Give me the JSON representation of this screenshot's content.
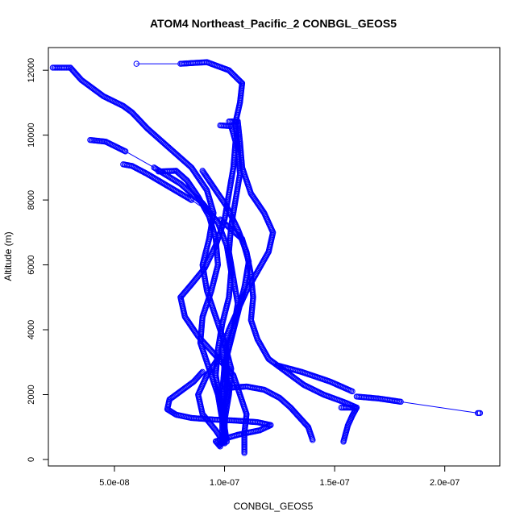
{
  "chart_data": {
    "type": "scatter",
    "title": "ATOM4 Northeast_Pacific_2 CONBGL_GEOS5",
    "xlabel": "CONBGL_GEOS5",
    "ylabel": "Altitude (m)",
    "xlim": [
      2e-08,
      2.25e-07
    ],
    "ylim": [
      -200,
      12700
    ],
    "xticks": [
      {
        "value": 5e-08,
        "label": "5.0e-08"
      },
      {
        "value": 1e-07,
        "label": "1.0e-07"
      },
      {
        "value": 1.5e-07,
        "label": "1.5e-07"
      },
      {
        "value": 2e-07,
        "label": "2.0e-07"
      }
    ],
    "yticks": [
      {
        "value": 0,
        "label": "0"
      },
      {
        "value": 2000,
        "label": "2000"
      },
      {
        "value": 4000,
        "label": "4000"
      },
      {
        "value": 6000,
        "label": "6000"
      },
      {
        "value": 8000,
        "label": "8000"
      },
      {
        "value": 10000,
        "label": "10000"
      },
      {
        "value": 12000,
        "label": "12000"
      }
    ],
    "color": "#0000ff",
    "marker": "open-circle",
    "grid": false,
    "series": [
      {
        "points": [
          [
            2.2e-08,
            12080
          ],
          [
            3e-08,
            12080
          ],
          [
            3.5e-08,
            11700
          ],
          [
            4.5e-08,
            11200
          ],
          [
            5.4e-08,
            10900
          ],
          [
            5.8e-08,
            10700
          ],
          [
            6.5e-08,
            10200
          ],
          [
            7.5e-08,
            9600
          ],
          [
            8.5e-08,
            9000
          ],
          [
            9.2e-08,
            8300
          ],
          [
            9.5e-08,
            7600
          ],
          [
            9.3e-08,
            6800
          ],
          [
            9e-08,
            6000
          ],
          [
            9.2e-08,
            5200
          ],
          [
            9.6e-08,
            4400
          ],
          [
            1e-07,
            3600
          ],
          [
            1.03e-07,
            2800
          ],
          [
            1.02e-07,
            2000
          ],
          [
            1e-07,
            1200
          ],
          [
            1e-07,
            600
          ],
          [
            9.8e-08,
            450
          ]
        ]
      },
      {
        "points": [
          [
            6e-08,
            12200
          ],
          [
            8e-08,
            12200
          ],
          [
            9.2e-08,
            12250
          ],
          [
            1.02e-07,
            12000
          ],
          [
            1.08e-07,
            11600
          ],
          [
            1.07e-07,
            11000
          ],
          [
            1.05e-07,
            10400
          ],
          [
            1.06e-07,
            9600
          ],
          [
            1.07e-07,
            8800
          ],
          [
            1.05e-07,
            8000
          ],
          [
            1.03e-07,
            7200
          ],
          [
            1.02e-07,
            6400
          ],
          [
            1.04e-07,
            5600
          ],
          [
            1.06e-07,
            4800
          ],
          [
            1.04e-07,
            4000
          ],
          [
            1.01e-07,
            3200
          ],
          [
            1e-07,
            2400
          ],
          [
            9.9e-08,
            1600
          ],
          [
            1e-07,
            800
          ],
          [
            9.9e-08,
            500
          ]
        ]
      },
      {
        "points": [
          [
            3.9e-08,
            9850
          ],
          [
            4.6e-08,
            9800
          ],
          [
            5.5e-08,
            9500
          ],
          [
            6.8e-08,
            9000
          ],
          [
            8e-08,
            8500
          ],
          [
            9e-08,
            7900
          ],
          [
            9.7e-08,
            7300
          ],
          [
            1.01e-07,
            6600
          ],
          [
            1.03e-07,
            5800
          ],
          [
            1.02e-07,
            5000
          ],
          [
            9.9e-08,
            4200
          ],
          [
            9.7e-08,
            3400
          ],
          [
            9.6e-08,
            2600
          ],
          [
            9.8e-08,
            1800
          ],
          [
            1e-07,
            1000
          ],
          [
            1.01e-07,
            550
          ]
        ]
      },
      {
        "points": [
          [
            5.4e-08,
            9100
          ],
          [
            5.8e-08,
            9050
          ],
          [
            6.5e-08,
            8800
          ],
          [
            7.5e-08,
            8400
          ],
          [
            8.5e-08,
            8000
          ],
          [
            9.8e-08,
            7400
          ],
          [
            1.08e-07,
            6800
          ],
          [
            1.11e-07,
            6100
          ],
          [
            1.09e-07,
            5300
          ],
          [
            1.06e-07,
            4500
          ],
          [
            1.03e-07,
            3700
          ],
          [
            1e-07,
            2900
          ],
          [
            9.9e-08,
            2100
          ],
          [
            1e-07,
            1300
          ],
          [
            1e-07,
            600
          ]
        ]
      },
      {
        "points": [
          [
            7e-08,
            8880
          ],
          [
            7.8e-08,
            8900
          ],
          [
            8.3e-08,
            8600
          ],
          [
            8.8e-08,
            8100
          ],
          [
            9.3e-08,
            7500
          ],
          [
            9.6e-08,
            6800
          ],
          [
            9.7e-08,
            6000
          ],
          [
            9.4e-08,
            5200
          ],
          [
            9e-08,
            4400
          ],
          [
            8.9e-08,
            3600
          ],
          [
            9.3e-08,
            2800
          ],
          [
            9.7e-08,
            2000
          ],
          [
            9.9e-08,
            1200
          ],
          [
            9.9e-08,
            500
          ]
        ]
      },
      {
        "points": [
          [
            9.8e-08,
            10300
          ],
          [
            1.03e-07,
            10280
          ],
          [
            1.05e-07,
            9800
          ],
          [
            1.04e-07,
            9000
          ],
          [
            1.02e-07,
            8200
          ],
          [
            1e-07,
            7400
          ],
          [
            9.6e-08,
            6600
          ],
          [
            9.1e-08,
            5900
          ],
          [
            8.5e-08,
            5400
          ],
          [
            8e-08,
            5000
          ],
          [
            8.2e-08,
            4400
          ],
          [
            8.8e-08,
            3800
          ],
          [
            9.6e-08,
            3200
          ],
          [
            1.04e-07,
            2600
          ],
          [
            1.07e-07,
            2000
          ],
          [
            1.1e-07,
            1400
          ],
          [
            1.09e-07,
            800
          ],
          [
            1.09e-07,
            200
          ]
        ]
      },
      {
        "points": [
          [
            1.02e-07,
            10420
          ],
          [
            1.06e-07,
            10430
          ],
          [
            1.07e-07,
            9800
          ],
          [
            1.08e-07,
            9000
          ],
          [
            1.12e-07,
            8200
          ],
          [
            1.18e-07,
            7600
          ],
          [
            1.22e-07,
            7000
          ],
          [
            1.2e-07,
            6400
          ],
          [
            1.15e-07,
            5800
          ],
          [
            1.1e-07,
            5200
          ],
          [
            1.06e-07,
            4600
          ],
          [
            1.02e-07,
            4000
          ],
          [
            9.9e-08,
            3400
          ],
          [
            1e-07,
            2800
          ],
          [
            1.02e-07,
            2200
          ],
          [
            1e-07,
            1600
          ],
          [
            1e-07,
            900
          ],
          [
            1e-07,
            500
          ]
        ]
      },
      {
        "points": [
          [
            9e-08,
            8900
          ],
          [
            9.5e-08,
            8400
          ],
          [
            1.01e-07,
            7800
          ],
          [
            1.06e-07,
            7100
          ],
          [
            1.1e-07,
            6400
          ],
          [
            1.12e-07,
            5700
          ],
          [
            1.13e-07,
            5000
          ],
          [
            1.12e-07,
            4300
          ],
          [
            1.15e-07,
            3700
          ],
          [
            1.2e-07,
            3100
          ],
          [
            1.28e-07,
            2700
          ],
          [
            1.36e-07,
            2300
          ],
          [
            1.45e-07,
            2000
          ],
          [
            1.55e-07,
            1750
          ],
          [
            1.6e-07,
            1600
          ]
        ]
      },
      {
        "points": [
          [
            1.53e-07,
            1600
          ],
          [
            1.6e-07,
            1600
          ],
          [
            1.58e-07,
            1350
          ],
          [
            1.56e-07,
            1050
          ],
          [
            1.55e-07,
            800
          ],
          [
            1.54e-07,
            550
          ]
        ]
      },
      {
        "points": [
          [
            1.6e-07,
            1940
          ],
          [
            1.7e-07,
            1880
          ],
          [
            1.8e-07,
            1780
          ],
          [
            2.15e-07,
            1430
          ],
          [
            2.16e-07,
            1430
          ]
        ]
      },
      {
        "points": [
          [
            1.24e-07,
            2900
          ],
          [
            1.35e-07,
            2700
          ],
          [
            1.48e-07,
            2400
          ],
          [
            1.58e-07,
            2100
          ]
        ]
      },
      {
        "points": [
          [
            1e-07,
            2200
          ],
          [
            1.1e-07,
            2250
          ],
          [
            1.18e-07,
            2150
          ],
          [
            1.25e-07,
            1900
          ],
          [
            1.3e-07,
            1600
          ],
          [
            1.34e-07,
            1300
          ],
          [
            1.38e-07,
            1000
          ],
          [
            1.4e-07,
            600
          ]
        ]
      },
      {
        "points": [
          [
            9e-08,
            2700
          ],
          [
            8.6e-08,
            2400
          ],
          [
            8e-08,
            2100
          ],
          [
            7.5e-08,
            1850
          ],
          [
            7.4e-08,
            1550
          ],
          [
            7.8e-08,
            1380
          ],
          [
            8.5e-08,
            1280
          ],
          [
            9.5e-08,
            1230
          ],
          [
            1.05e-07,
            1200
          ],
          [
            1.15e-07,
            1150
          ],
          [
            1.21e-07,
            1060
          ],
          [
            1.16e-07,
            900
          ],
          [
            1.06e-07,
            760
          ],
          [
            9.6e-08,
            560
          ],
          [
            9.8e-08,
            400
          ]
        ]
      },
      {
        "points": [
          [
            9.7e-08,
            3100
          ],
          [
            9.2e-08,
            2600
          ],
          [
            8.8e-08,
            2000
          ],
          [
            9e-08,
            1400
          ],
          [
            9.6e-08,
            900
          ],
          [
            1e-07,
            500
          ]
        ]
      }
    ]
  }
}
